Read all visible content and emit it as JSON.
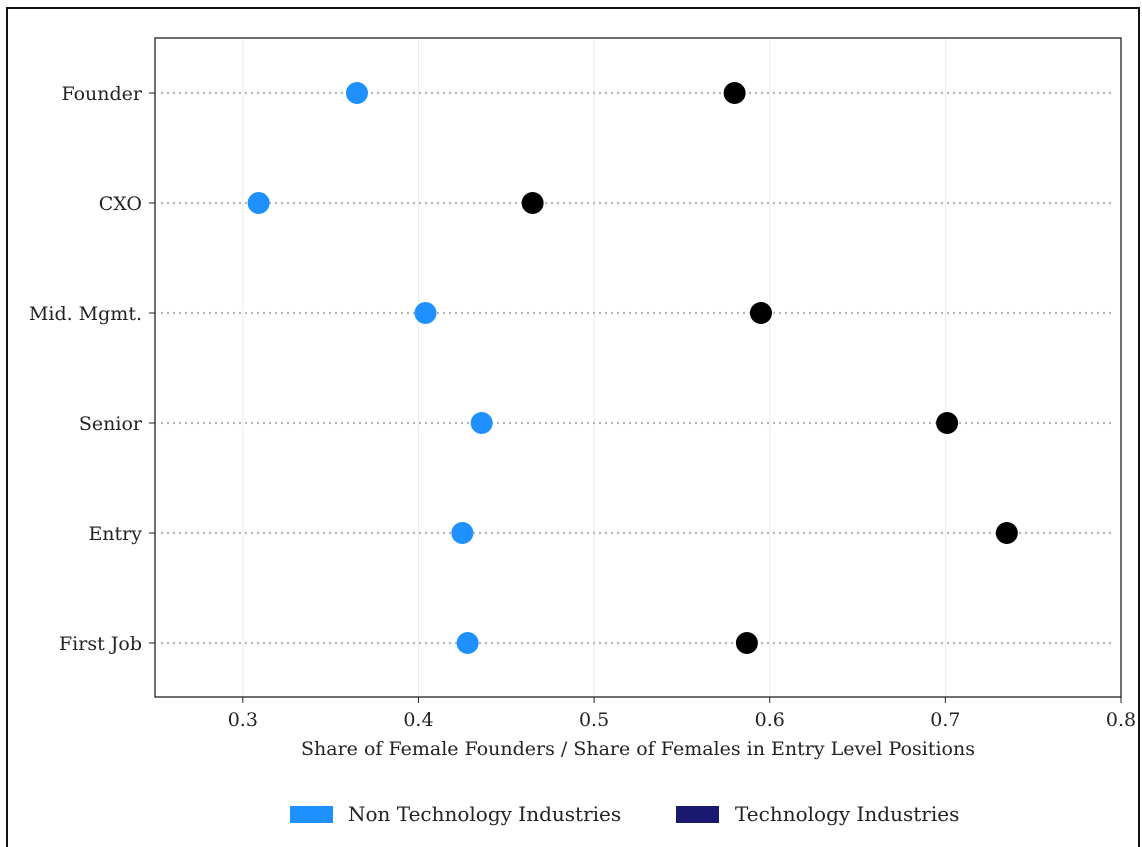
{
  "chart_data": {
    "type": "scatter",
    "title": "",
    "xlabel": "Share of Female Founders / Share of Females in Entry Level Positions",
    "ylabel": "",
    "xlim": [
      0.25,
      0.8
    ],
    "xticks": [
      "0.3",
      "0.4",
      "0.5",
      "0.6",
      "0.7",
      "0.8"
    ],
    "categories": [
      "Founder",
      "CXO",
      "Mid. Mgmt.",
      "Senior",
      "Entry",
      "First Job"
    ],
    "grid": "vertical light gridlines; dotted horizontal guide per category",
    "legend_position": "bottom-center",
    "series": [
      {
        "name": "Non Technology Industries",
        "legend_color": "#1e90ff",
        "marker_color": "#1e90ff",
        "values": [
          0.365,
          0.309,
          0.404,
          0.436,
          0.425,
          0.428
        ]
      },
      {
        "name": "Technology Industries",
        "legend_color": "#191970",
        "marker_color": "#000000",
        "values": [
          0.58,
          0.465,
          0.595,
          0.701,
          0.735,
          0.587
        ]
      }
    ]
  }
}
